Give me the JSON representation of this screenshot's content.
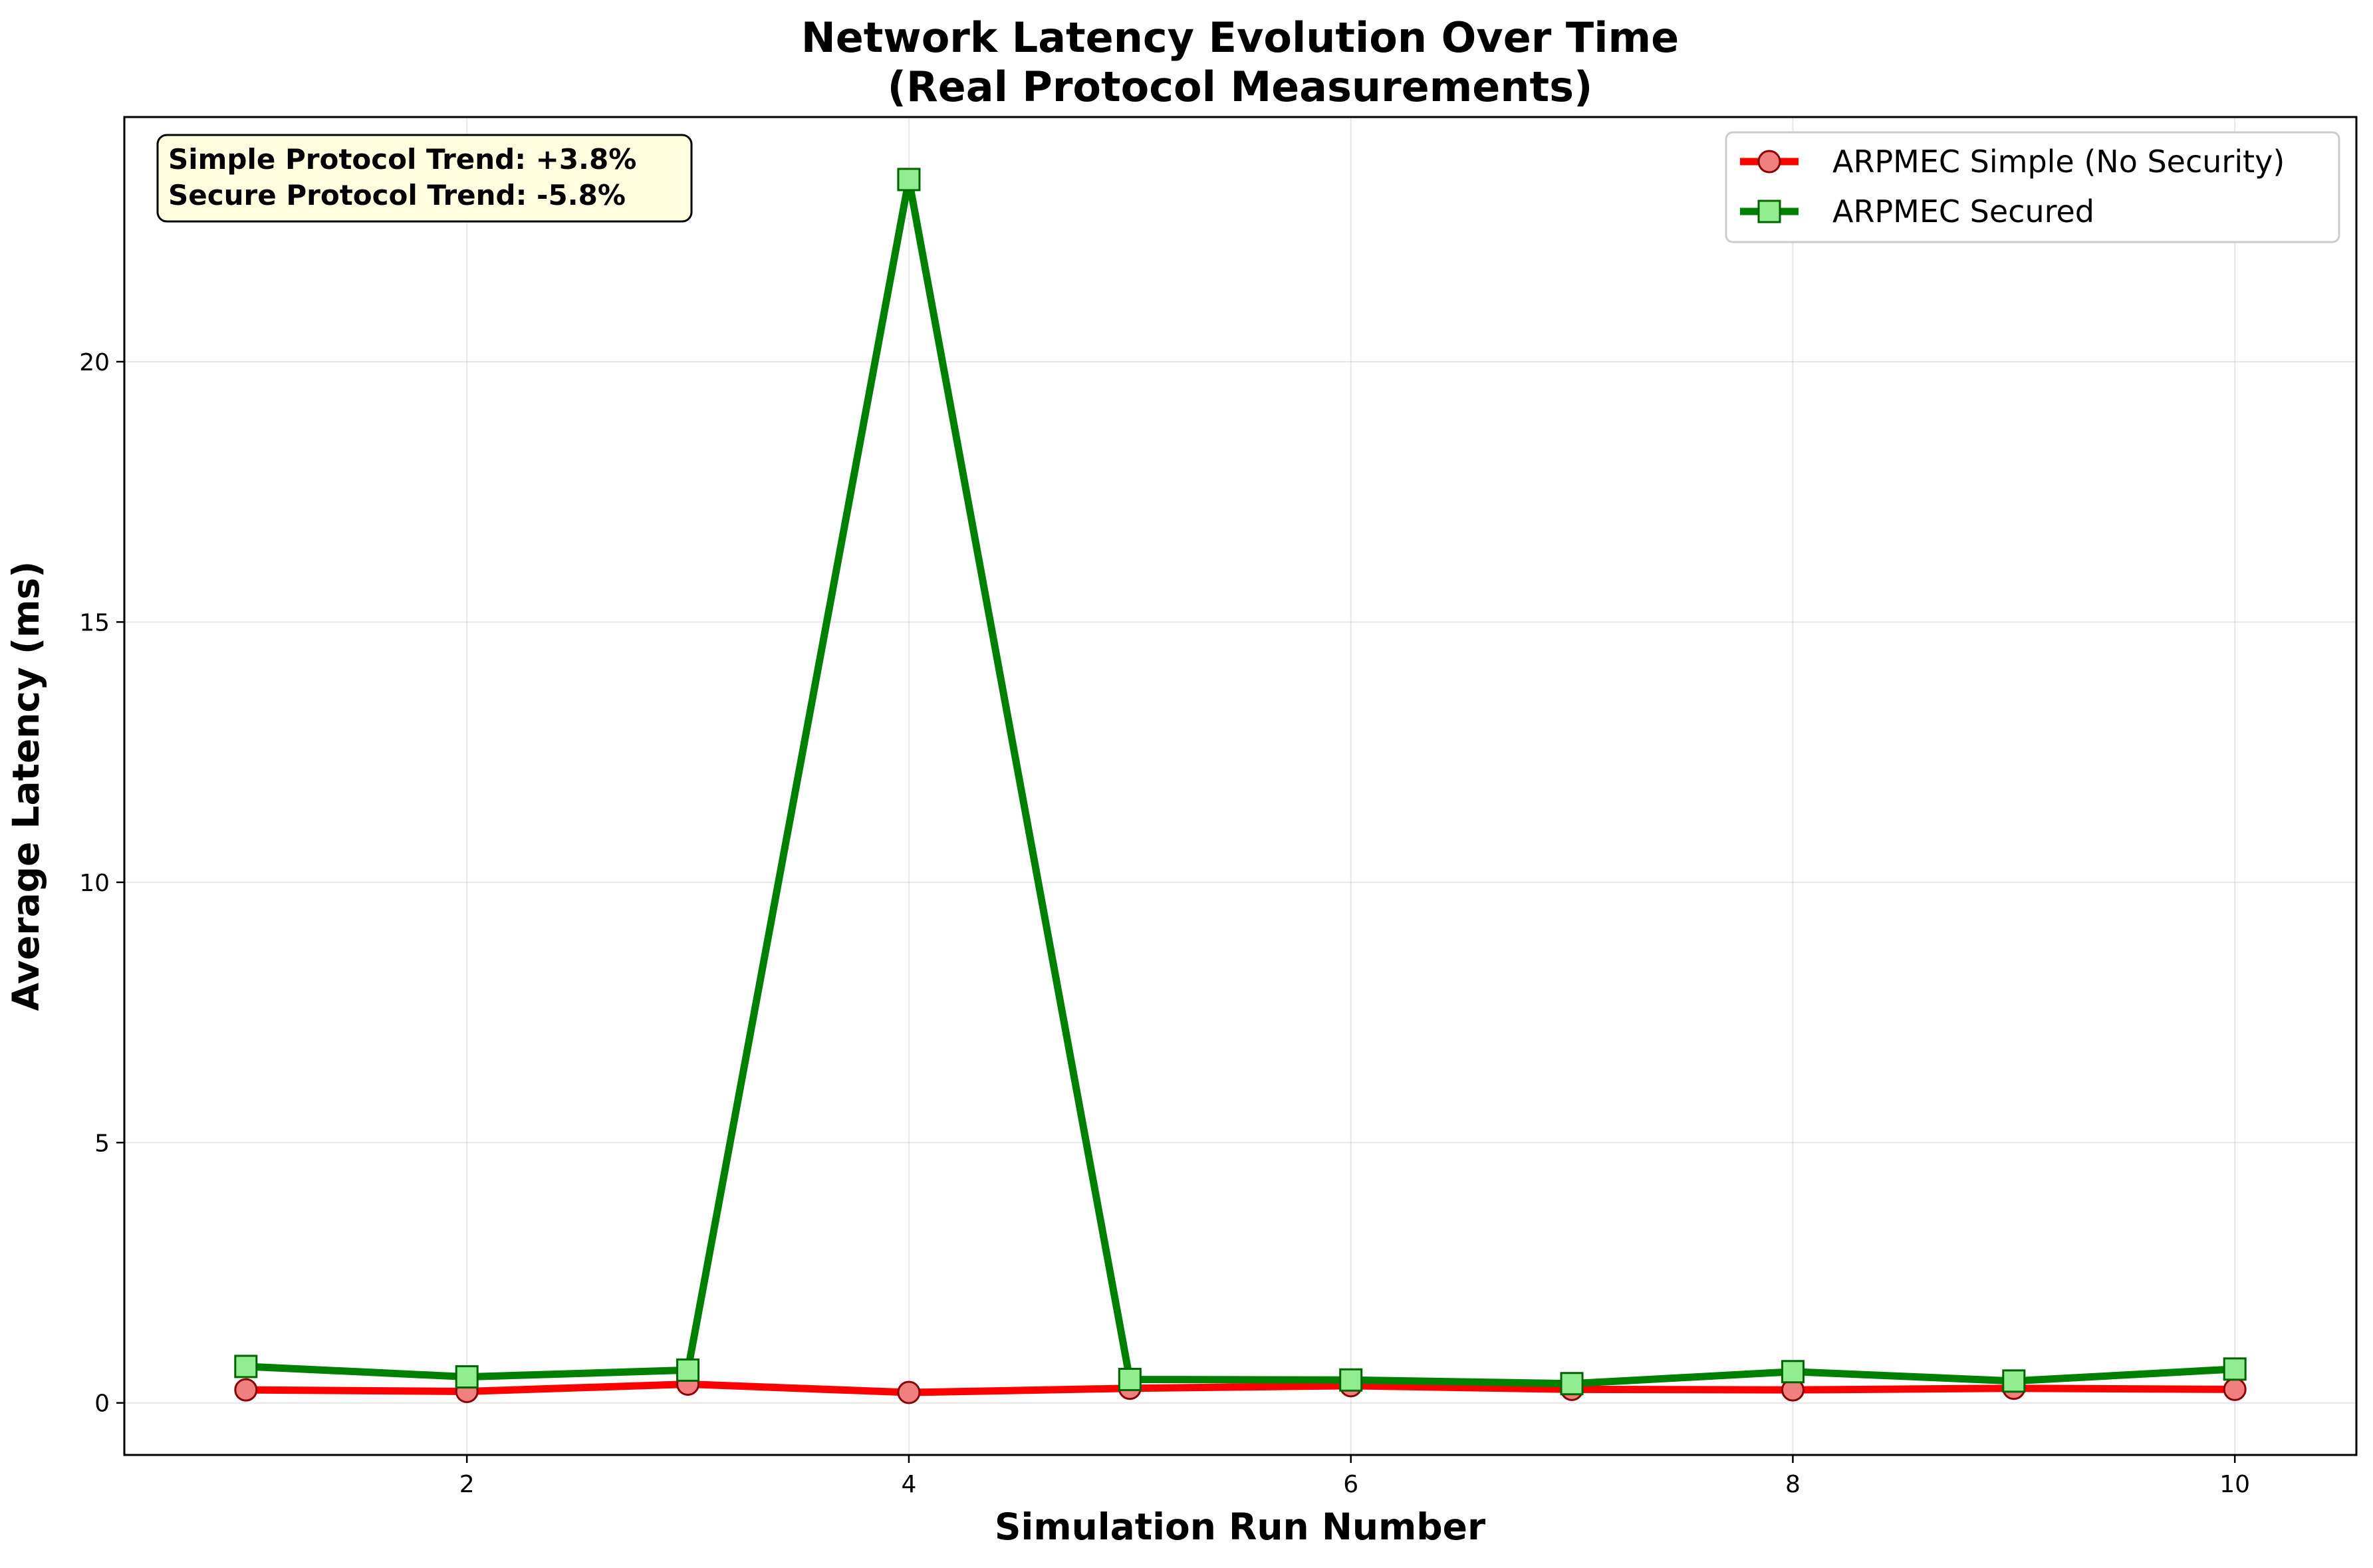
{
  "chart_data": {
    "type": "line",
    "title_lines": [
      "Network Latency Evolution Over Time",
      "(Real Protocol Measurements)"
    ],
    "xlabel": "Simulation Run Number",
    "ylabel": "Average Latency (ms)",
    "xlim": [
      0.45,
      10.55
    ],
    "ylim": [
      -1.0,
      24.7
    ],
    "x_ticks": [
      2,
      4,
      6,
      8,
      10
    ],
    "y_ticks": [
      0,
      5,
      10,
      15,
      20
    ],
    "grid": true,
    "legend_position": "top-right",
    "x": [
      1,
      2,
      3,
      4,
      5,
      6,
      7,
      8,
      9,
      10
    ],
    "series": [
      {
        "name": "ARPMEC Simple (No Security)",
        "values": [
          0.25,
          0.22,
          0.36,
          0.2,
          0.28,
          0.33,
          0.26,
          0.25,
          0.28,
          0.26
        ],
        "line_color": "#ff0000",
        "marker": "circle",
        "marker_fill": "#f08080",
        "marker_edge": "#8b0000"
      },
      {
        "name": "ARPMEC Secured",
        "values": [
          0.7,
          0.5,
          0.63,
          23.5,
          0.45,
          0.44,
          0.37,
          0.6,
          0.42,
          0.65
        ],
        "line_color": "#008000",
        "marker": "square",
        "marker_fill": "#90ee90",
        "marker_edge": "#006400"
      }
    ],
    "annotation_lines": [
      "Simple Protocol Trend: +3.8%",
      "Secure Protocol Trend: -5.8%"
    ],
    "annotation_bg": "#ffffe0"
  }
}
